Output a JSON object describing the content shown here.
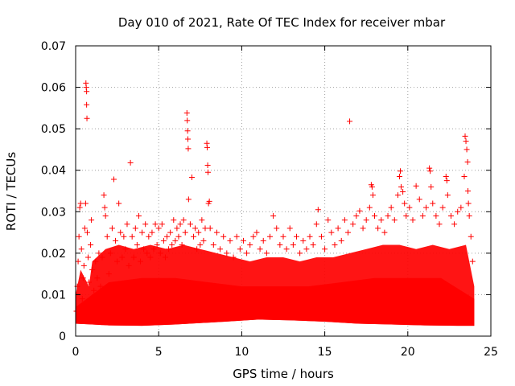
{
  "chart_data": {
    "type": "scatter",
    "title": "Day 010 of 2021, Rate Of TEC Index for receiver mbar",
    "xlabel": "GPS time / hours",
    "ylabel": "ROTI / TECUs",
    "xlim": [
      0,
      25
    ],
    "ylim": [
      0,
      0.07
    ],
    "xticks": [
      0,
      5,
      10,
      15,
      20,
      25
    ],
    "xtick_labels": [
      "0",
      "5",
      "10",
      "15",
      "20",
      "25"
    ],
    "yticks": [
      0,
      0.01,
      0.02,
      0.03,
      0.04,
      0.05,
      0.06,
      0.07
    ],
    "ytick_labels": [
      "0",
      "0.01",
      "0.02",
      "0.03",
      "0.04",
      "0.05",
      "0.06",
      "0.07"
    ],
    "grid": true,
    "marker": "plus",
    "series": [
      {
        "name": "ROTI",
        "color": "#ff0000",
        "points": [
          [
            0.05,
            0.006
          ],
          [
            0.1,
            0.012
          ],
          [
            0.15,
            0.018
          ],
          [
            0.2,
            0.024
          ],
          [
            0.25,
            0.031
          ],
          [
            0.3,
            0.032
          ],
          [
            0.35,
            0.021
          ],
          [
            0.4,
            0.009
          ],
          [
            0.45,
            0.014
          ],
          [
            0.5,
            0.017
          ],
          [
            0.55,
            0.026
          ],
          [
            0.6,
            0.032
          ],
          [
            0.62,
            0.061
          ],
          [
            0.64,
            0.06
          ],
          [
            0.66,
            0.059
          ],
          [
            0.66,
            0.0558
          ],
          [
            0.68,
            0.0525
          ],
          [
            0.7,
            0.025
          ],
          [
            0.75,
            0.019
          ],
          [
            0.8,
            0.013
          ],
          [
            0.85,
            0.008
          ],
          [
            0.9,
            0.022
          ],
          [
            0.95,
            0.028
          ],
          [
            1.0,
            0.016
          ],
          [
            1.1,
            0.011
          ],
          [
            1.2,
            0.018
          ],
          [
            1.3,
            0.014
          ],
          [
            1.4,
            0.02
          ],
          [
            1.5,
            0.012
          ],
          [
            1.6,
            0.019
          ],
          [
            1.7,
            0.034
          ],
          [
            1.75,
            0.031
          ],
          [
            1.8,
            0.029
          ],
          [
            1.9,
            0.024
          ],
          [
            2.0,
            0.015
          ],
          [
            2.1,
            0.02
          ],
          [
            2.2,
            0.026
          ],
          [
            2.3,
            0.0378
          ],
          [
            2.4,
            0.023
          ],
          [
            2.5,
            0.018
          ],
          [
            2.6,
            0.032
          ],
          [
            2.7,
            0.025
          ],
          [
            2.8,
            0.019
          ],
          [
            2.9,
            0.024
          ],
          [
            3.0,
            0.021
          ],
          [
            3.1,
            0.027
          ],
          [
            3.2,
            0.017
          ],
          [
            3.3,
            0.0418
          ],
          [
            3.4,
            0.024
          ],
          [
            3.5,
            0.019
          ],
          [
            3.6,
            0.026
          ],
          [
            3.7,
            0.022
          ],
          [
            3.8,
            0.029
          ],
          [
            3.9,
            0.018
          ],
          [
            4.0,
            0.025
          ],
          [
            4.1,
            0.021
          ],
          [
            4.2,
            0.027
          ],
          [
            4.3,
            0.02
          ],
          [
            4.4,
            0.024
          ],
          [
            4.5,
            0.019
          ],
          [
            4.6,
            0.025
          ],
          [
            4.7,
            0.021
          ],
          [
            4.8,
            0.027
          ],
          [
            4.9,
            0.022
          ],
          [
            5.0,
            0.026
          ],
          [
            5.1,
            0.02
          ],
          [
            5.2,
            0.027
          ],
          [
            5.3,
            0.023
          ],
          [
            5.4,
            0.019
          ],
          [
            5.5,
            0.024
          ],
          [
            5.6,
            0.021
          ],
          [
            5.7,
            0.025
          ],
          [
            5.8,
            0.022
          ],
          [
            5.9,
            0.028
          ],
          [
            6.0,
            0.023
          ],
          [
            6.1,
            0.026
          ],
          [
            6.2,
            0.024
          ],
          [
            6.3,
            0.027
          ],
          [
            6.4,
            0.022
          ],
          [
            6.5,
            0.028
          ],
          [
            6.6,
            0.025
          ],
          [
            6.7,
            0.0538
          ],
          [
            6.72,
            0.052
          ],
          [
            6.74,
            0.0495
          ],
          [
            6.76,
            0.0475
          ],
          [
            6.78,
            0.0452
          ],
          [
            6.8,
            0.033
          ],
          [
            6.9,
            0.027
          ],
          [
            7.0,
            0.0383
          ],
          [
            7.1,
            0.024
          ],
          [
            7.2,
            0.026
          ],
          [
            7.3,
            0.021
          ],
          [
            7.4,
            0.025
          ],
          [
            7.5,
            0.022
          ],
          [
            7.6,
            0.028
          ],
          [
            7.7,
            0.023
          ],
          [
            7.8,
            0.026
          ],
          [
            7.9,
            0.0465
          ],
          [
            7.92,
            0.0455
          ],
          [
            7.95,
            0.0412
          ],
          [
            7.97,
            0.0395
          ],
          [
            8.0,
            0.032
          ],
          [
            8.05,
            0.0325
          ],
          [
            8.1,
            0.026
          ],
          [
            8.3,
            0.022
          ],
          [
            8.5,
            0.025
          ],
          [
            8.7,
            0.021
          ],
          [
            8.9,
            0.024
          ],
          [
            9.1,
            0.02
          ],
          [
            9.3,
            0.023
          ],
          [
            9.5,
            0.019
          ],
          [
            9.7,
            0.024
          ],
          [
            9.9,
            0.021
          ],
          [
            10.1,
            0.023
          ],
          [
            10.3,
            0.02
          ],
          [
            10.5,
            0.022
          ],
          [
            10.7,
            0.024
          ],
          [
            10.9,
            0.025
          ],
          [
            11.1,
            0.021
          ],
          [
            11.3,
            0.023
          ],
          [
            11.5,
            0.02
          ],
          [
            11.7,
            0.024
          ],
          [
            11.9,
            0.029
          ],
          [
            12.1,
            0.026
          ],
          [
            12.3,
            0.022
          ],
          [
            12.5,
            0.024
          ],
          [
            12.7,
            0.021
          ],
          [
            12.9,
            0.026
          ],
          [
            13.1,
            0.022
          ],
          [
            13.3,
            0.024
          ],
          [
            13.5,
            0.02
          ],
          [
            13.7,
            0.023
          ],
          [
            13.9,
            0.021
          ],
          [
            14.1,
            0.024
          ],
          [
            14.3,
            0.022
          ],
          [
            14.5,
            0.027
          ],
          [
            14.6,
            0.0305
          ],
          [
            14.8,
            0.024
          ],
          [
            15.0,
            0.021
          ],
          [
            15.2,
            0.028
          ],
          [
            15.4,
            0.025
          ],
          [
            15.6,
            0.022
          ],
          [
            15.8,
            0.026
          ],
          [
            16.0,
            0.023
          ],
          [
            16.2,
            0.028
          ],
          [
            16.4,
            0.025
          ],
          [
            16.5,
            0.0518
          ],
          [
            16.7,
            0.027
          ],
          [
            16.9,
            0.029
          ],
          [
            17.1,
            0.0302
          ],
          [
            17.3,
            0.026
          ],
          [
            17.5,
            0.028
          ],
          [
            17.7,
            0.031
          ],
          [
            17.8,
            0.0365
          ],
          [
            17.85,
            0.036
          ],
          [
            17.9,
            0.034
          ],
          [
            18.0,
            0.029
          ],
          [
            18.2,
            0.026
          ],
          [
            18.4,
            0.028
          ],
          [
            18.6,
            0.025
          ],
          [
            18.8,
            0.029
          ],
          [
            19.0,
            0.031
          ],
          [
            19.2,
            0.028
          ],
          [
            19.4,
            0.034
          ],
          [
            19.5,
            0.0385
          ],
          [
            19.55,
            0.0398
          ],
          [
            19.6,
            0.036
          ],
          [
            19.7,
            0.0348
          ],
          [
            19.8,
            0.032
          ],
          [
            19.9,
            0.029
          ],
          [
            20.1,
            0.031
          ],
          [
            20.3,
            0.028
          ],
          [
            20.5,
            0.0362
          ],
          [
            20.7,
            0.033
          ],
          [
            20.9,
            0.029
          ],
          [
            21.1,
            0.031
          ],
          [
            21.3,
            0.0405
          ],
          [
            21.35,
            0.0398
          ],
          [
            21.4,
            0.036
          ],
          [
            21.5,
            0.032
          ],
          [
            21.7,
            0.029
          ],
          [
            21.9,
            0.027
          ],
          [
            22.1,
            0.031
          ],
          [
            22.3,
            0.0385
          ],
          [
            22.35,
            0.0375
          ],
          [
            22.4,
            0.034
          ],
          [
            22.6,
            0.029
          ],
          [
            22.8,
            0.027
          ],
          [
            23.0,
            0.03
          ],
          [
            23.2,
            0.031
          ],
          [
            23.4,
            0.0385
          ],
          [
            23.45,
            0.0482
          ],
          [
            23.5,
            0.047
          ],
          [
            23.55,
            0.045
          ],
          [
            23.6,
            0.042
          ],
          [
            23.62,
            0.035
          ],
          [
            23.65,
            0.032
          ],
          [
            23.7,
            0.029
          ],
          [
            23.8,
            0.024
          ],
          [
            23.9,
            0.018
          ]
        ]
      }
    ],
    "dense_band": {
      "description": "Solid red band of overlapping markers along the whole day",
      "lower": [
        [
          0.0,
          0.003
        ],
        [
          1.0,
          0.0028
        ],
        [
          2.0,
          0.0026
        ],
        [
          4.0,
          0.0025
        ],
        [
          6.0,
          0.0028
        ],
        [
          9.0,
          0.0035
        ],
        [
          11.0,
          0.004
        ],
        [
          13.0,
          0.0038
        ],
        [
          15.0,
          0.0035
        ],
        [
          17.0,
          0.003
        ],
        [
          19.0,
          0.0028
        ],
        [
          21.0,
          0.0026
        ],
        [
          23.0,
          0.0025
        ],
        [
          24.0,
          0.0025
        ]
      ],
      "upper": [
        [
          0.0,
          0.01
        ],
        [
          0.3,
          0.016
        ],
        [
          0.8,
          0.012
        ],
        [
          1.0,
          0.018
        ],
        [
          1.8,
          0.021
        ],
        [
          2.6,
          0.022
        ],
        [
          3.5,
          0.021
        ],
        [
          4.5,
          0.022
        ],
        [
          5.5,
          0.021
        ],
        [
          6.5,
          0.022
        ],
        [
          7.5,
          0.021
        ],
        [
          8.5,
          0.02
        ],
        [
          9.5,
          0.019
        ],
        [
          10.5,
          0.018
        ],
        [
          11.5,
          0.019
        ],
        [
          12.5,
          0.019
        ],
        [
          13.5,
          0.018
        ],
        [
          14.5,
          0.019
        ],
        [
          15.5,
          0.019
        ],
        [
          16.5,
          0.02
        ],
        [
          17.5,
          0.021
        ],
        [
          18.5,
          0.022
        ],
        [
          19.5,
          0.022
        ],
        [
          20.5,
          0.021
        ],
        [
          21.5,
          0.022
        ],
        [
          22.5,
          0.021
        ],
        [
          23.5,
          0.022
        ],
        [
          24.0,
          0.012
        ]
      ],
      "core_upper": [
        [
          0.0,
          0.007
        ],
        [
          2.0,
          0.013
        ],
        [
          4.0,
          0.014
        ],
        [
          6.0,
          0.014
        ],
        [
          8.0,
          0.013
        ],
        [
          10.0,
          0.012
        ],
        [
          12.0,
          0.012
        ],
        [
          14.0,
          0.012
        ],
        [
          16.0,
          0.013
        ],
        [
          18.0,
          0.014
        ],
        [
          20.0,
          0.014
        ],
        [
          22.0,
          0.014
        ],
        [
          24.0,
          0.009
        ]
      ]
    }
  }
}
